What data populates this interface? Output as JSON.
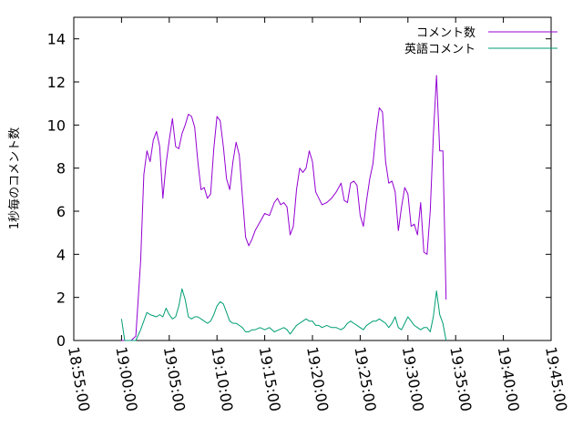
{
  "chart_data": {
    "type": "line",
    "ylabel": "1秒毎のコメント数",
    "xlabel": "",
    "x_ticks": [
      "18:55:00",
      "19:00:00",
      "19:05:00",
      "19:10:00",
      "19:15:00",
      "19:20:00",
      "19:25:00",
      "19:30:00",
      "19:35:00",
      "19:40:00",
      "19:45:00"
    ],
    "y_ticks": [
      0,
      2,
      4,
      6,
      8,
      10,
      12,
      14
    ],
    "xlim": [
      "18:55:00",
      "19:45:00"
    ],
    "ylim": [
      0,
      15
    ],
    "legend_position": "top-right",
    "grid": false,
    "series": [
      {
        "name": "コメント数",
        "color": "#9400d3",
        "points": [
          [
            "19:00:00",
            0
          ],
          [
            "19:01:00",
            0
          ],
          [
            "19:01:30",
            0.2
          ],
          [
            "19:02:00",
            3.7
          ],
          [
            "19:02:20",
            7.7
          ],
          [
            "19:02:40",
            8.8
          ],
          [
            "19:03:00",
            8.3
          ],
          [
            "19:03:20",
            9.3
          ],
          [
            "19:03:40",
            9.7
          ],
          [
            "19:04:00",
            9.0
          ],
          [
            "19:04:20",
            6.6
          ],
          [
            "19:04:40",
            8.2
          ],
          [
            "19:05:00",
            9.3
          ],
          [
            "19:05:20",
            10.3
          ],
          [
            "19:05:40",
            9.0
          ],
          [
            "19:06:00",
            8.9
          ],
          [
            "19:06:20",
            9.6
          ],
          [
            "19:06:40",
            10.0
          ],
          [
            "19:07:00",
            10.5
          ],
          [
            "19:07:20",
            10.4
          ],
          [
            "19:07:40",
            9.9
          ],
          [
            "19:08:00",
            8.3
          ],
          [
            "19:08:20",
            7.0
          ],
          [
            "19:08:40",
            7.1
          ],
          [
            "19:09:00",
            6.6
          ],
          [
            "19:09:20",
            6.8
          ],
          [
            "19:09:40",
            8.9
          ],
          [
            "19:10:00",
            10.4
          ],
          [
            "19:10:20",
            10.2
          ],
          [
            "19:10:40",
            9.0
          ],
          [
            "19:11:00",
            7.5
          ],
          [
            "19:11:20",
            7.0
          ],
          [
            "19:11:40",
            8.3
          ],
          [
            "19:12:00",
            9.2
          ],
          [
            "19:12:20",
            8.6
          ],
          [
            "19:12:40",
            6.7
          ],
          [
            "19:13:00",
            4.8
          ],
          [
            "19:13:20",
            4.4
          ],
          [
            "19:13:40",
            4.7
          ],
          [
            "19:14:00",
            5.1
          ],
          [
            "19:14:30",
            5.5
          ],
          [
            "19:15:00",
            5.9
          ],
          [
            "19:15:30",
            5.8
          ],
          [
            "19:16:00",
            6.4
          ],
          [
            "19:16:20",
            6.6
          ],
          [
            "19:16:40",
            6.3
          ],
          [
            "19:17:00",
            6.4
          ],
          [
            "19:17:20",
            6.2
          ],
          [
            "19:17:40",
            4.9
          ],
          [
            "19:18:00",
            5.3
          ],
          [
            "19:18:20",
            7.0
          ],
          [
            "19:18:40",
            8.0
          ],
          [
            "19:19:00",
            7.8
          ],
          [
            "19:19:20",
            8.0
          ],
          [
            "19:19:40",
            8.8
          ],
          [
            "19:20:00",
            8.3
          ],
          [
            "19:20:20",
            6.9
          ],
          [
            "19:20:40",
            6.6
          ],
          [
            "19:21:00",
            6.3
          ],
          [
            "19:21:30",
            6.4
          ],
          [
            "19:22:00",
            6.6
          ],
          [
            "19:22:30",
            6.9
          ],
          [
            "19:23:00",
            7.3
          ],
          [
            "19:23:20",
            6.5
          ],
          [
            "19:23:40",
            6.4
          ],
          [
            "19:24:00",
            7.3
          ],
          [
            "19:24:20",
            7.4
          ],
          [
            "19:24:40",
            7.2
          ],
          [
            "19:25:00",
            5.8
          ],
          [
            "19:25:20",
            5.3
          ],
          [
            "19:25:40",
            6.5
          ],
          [
            "19:26:00",
            7.5
          ],
          [
            "19:26:20",
            8.2
          ],
          [
            "19:26:40",
            9.7
          ],
          [
            "19:27:00",
            10.8
          ],
          [
            "19:27:20",
            10.6
          ],
          [
            "19:27:40",
            8.3
          ],
          [
            "19:28:00",
            7.3
          ],
          [
            "19:28:20",
            7.4
          ],
          [
            "19:28:40",
            6.9
          ],
          [
            "19:29:00",
            5.1
          ],
          [
            "19:29:20",
            6.2
          ],
          [
            "19:29:40",
            7.1
          ],
          [
            "19:30:00",
            6.8
          ],
          [
            "19:30:20",
            5.3
          ],
          [
            "19:30:40",
            5.4
          ],
          [
            "19:31:00",
            4.9
          ],
          [
            "19:31:20",
            6.4
          ],
          [
            "19:31:40",
            4.1
          ],
          [
            "19:32:00",
            4.0
          ],
          [
            "19:32:20",
            6.0
          ],
          [
            "19:32:40",
            9.5
          ],
          [
            "19:33:00",
            12.3
          ],
          [
            "19:33:20",
            8.8
          ],
          [
            "19:33:40",
            8.8
          ],
          [
            "19:34:00",
            1.9
          ]
        ]
      },
      {
        "name": "英語コメント",
        "color": "#009e73",
        "points": [
          [
            "19:00:00",
            1.0
          ],
          [
            "19:00:20",
            0
          ],
          [
            "19:01:00",
            0
          ],
          [
            "19:01:30",
            0
          ],
          [
            "19:02:00",
            0.5
          ],
          [
            "19:02:40",
            1.3
          ],
          [
            "19:03:00",
            1.2
          ],
          [
            "19:03:40",
            1.1
          ],
          [
            "19:04:00",
            1.2
          ],
          [
            "19:04:20",
            1.1
          ],
          [
            "19:04:40",
            1.5
          ],
          [
            "19:05:00",
            1.2
          ],
          [
            "19:05:20",
            1.0
          ],
          [
            "19:05:40",
            1.1
          ],
          [
            "19:06:00",
            1.6
          ],
          [
            "19:06:20",
            2.4
          ],
          [
            "19:06:40",
            1.9
          ],
          [
            "19:07:00",
            1.1
          ],
          [
            "19:07:20",
            1.0
          ],
          [
            "19:07:40",
            1.1
          ],
          [
            "19:08:00",
            1.1
          ],
          [
            "19:08:20",
            1.0
          ],
          [
            "19:08:40",
            0.9
          ],
          [
            "19:09:00",
            0.8
          ],
          [
            "19:09:20",
            0.9
          ],
          [
            "19:09:40",
            1.2
          ],
          [
            "19:10:00",
            1.6
          ],
          [
            "19:10:20",
            1.8
          ],
          [
            "19:10:40",
            1.7
          ],
          [
            "19:11:00",
            1.3
          ],
          [
            "19:11:20",
            0.9
          ],
          [
            "19:11:40",
            0.8
          ],
          [
            "19:12:00",
            0.8
          ],
          [
            "19:12:20",
            0.7
          ],
          [
            "19:12:40",
            0.6
          ],
          [
            "19:13:00",
            0.4
          ],
          [
            "19:13:20",
            0.4
          ],
          [
            "19:13:40",
            0.5
          ],
          [
            "19:14:00",
            0.5
          ],
          [
            "19:14:30",
            0.6
          ],
          [
            "19:15:00",
            0.5
          ],
          [
            "19:15:30",
            0.6
          ],
          [
            "19:16:00",
            0.4
          ],
          [
            "19:16:30",
            0.5
          ],
          [
            "19:17:00",
            0.6
          ],
          [
            "19:17:20",
            0.5
          ],
          [
            "19:17:40",
            0.3
          ],
          [
            "19:18:00",
            0.5
          ],
          [
            "19:18:20",
            0.7
          ],
          [
            "19:18:40",
            0.8
          ],
          [
            "19:19:00",
            0.9
          ],
          [
            "19:19:20",
            1.0
          ],
          [
            "19:19:40",
            0.9
          ],
          [
            "19:20:00",
            0.9
          ],
          [
            "19:20:20",
            0.7
          ],
          [
            "19:20:40",
            0.7
          ],
          [
            "19:21:00",
            0.6
          ],
          [
            "19:21:30",
            0.7
          ],
          [
            "19:22:00",
            0.6
          ],
          [
            "19:22:30",
            0.6
          ],
          [
            "19:23:00",
            0.5
          ],
          [
            "19:23:20",
            0.6
          ],
          [
            "19:23:40",
            0.8
          ],
          [
            "19:24:00",
            0.9
          ],
          [
            "19:24:20",
            0.8
          ],
          [
            "19:24:40",
            0.7
          ],
          [
            "19:25:00",
            0.6
          ],
          [
            "19:25:20",
            0.5
          ],
          [
            "19:25:40",
            0.7
          ],
          [
            "19:26:00",
            0.8
          ],
          [
            "19:26:20",
            0.9
          ],
          [
            "19:26:40",
            0.9
          ],
          [
            "19:27:00",
            1.0
          ],
          [
            "19:27:20",
            0.9
          ],
          [
            "19:27:40",
            0.8
          ],
          [
            "19:28:00",
            0.6
          ],
          [
            "19:28:20",
            0.8
          ],
          [
            "19:28:40",
            1.1
          ],
          [
            "19:29:00",
            0.6
          ],
          [
            "19:29:20",
            0.5
          ],
          [
            "19:29:40",
            0.8
          ],
          [
            "19:30:00",
            1.1
          ],
          [
            "19:30:20",
            0.9
          ],
          [
            "19:30:40",
            0.7
          ],
          [
            "19:31:00",
            0.6
          ],
          [
            "19:31:20",
            0.5
          ],
          [
            "19:31:40",
            0.6
          ],
          [
            "19:32:00",
            0.6
          ],
          [
            "19:32:20",
            0.4
          ],
          [
            "19:32:40",
            1.1
          ],
          [
            "19:33:00",
            2.3
          ],
          [
            "19:33:20",
            1.2
          ],
          [
            "19:33:40",
            0.8
          ],
          [
            "19:34:00",
            0
          ]
        ]
      }
    ]
  }
}
